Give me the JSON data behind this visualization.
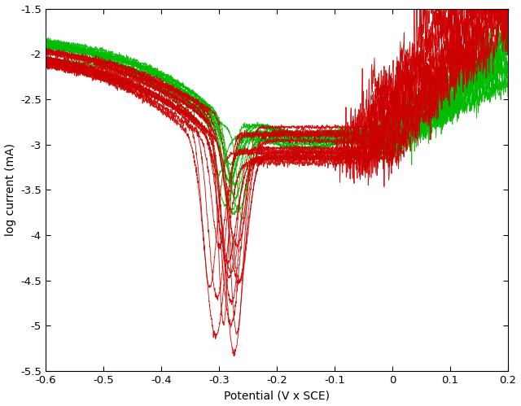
{
  "xlim": [
    -0.6,
    0.2
  ],
  "ylim": [
    -5.5,
    -1.5
  ],
  "xlabel": "Potential (V x SCE)",
  "ylabel": "log current (mA)",
  "xticks": [
    -0.6,
    -0.5,
    -0.4,
    -0.3,
    -0.2,
    -0.1,
    0.0,
    0.1,
    0.2
  ],
  "yticks": [
    -5.5,
    -5.0,
    -4.5,
    -4.0,
    -3.5,
    -3.0,
    -2.5,
    -2.0,
    -1.5
  ],
  "background_color": "#ffffff",
  "tick_color": "#000000",
  "spine_color": "#000000",
  "green_color": "#00bb00",
  "red_color": "#cc0000",
  "n_green": 13,
  "n_red": 15,
  "linewidth": 0.65,
  "figsize": [
    6.4,
    4.99
  ],
  "dpi": 100
}
